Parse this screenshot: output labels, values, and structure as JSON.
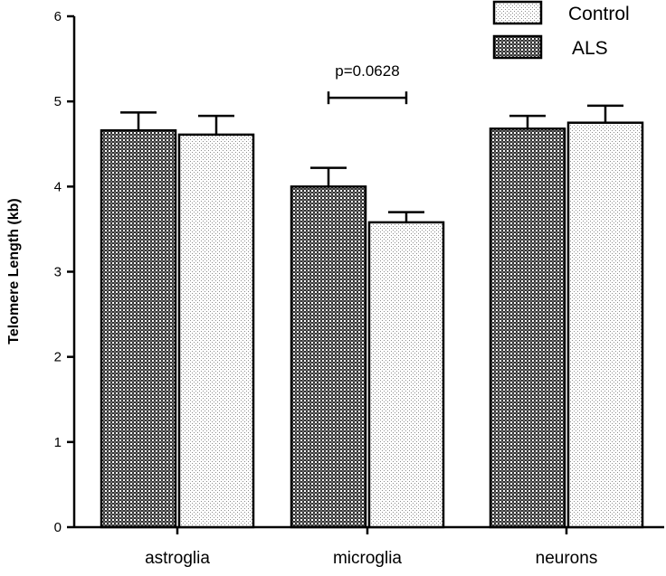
{
  "chart_data": {
    "type": "bar",
    "title": "",
    "xlabel": "",
    "ylabel": "Telomere Length (kb)",
    "ylim": [
      0,
      6
    ],
    "yticks": [
      0,
      1,
      2,
      3,
      4,
      5,
      6
    ],
    "categories": [
      "astroglia",
      "microglia",
      "neurons"
    ],
    "series": [
      {
        "name": "ALS",
        "pattern": "crosshatch-dense",
        "values": [
          4.66,
          4.0,
          4.68
        ],
        "errors": [
          0.21,
          0.22,
          0.15
        ]
      },
      {
        "name": "Control",
        "pattern": "dots-light",
        "values": [
          4.61,
          3.58,
          4.75
        ],
        "errors": [
          0.22,
          0.12,
          0.2
        ]
      }
    ],
    "legend": {
      "position": "top-right",
      "entries": [
        "Control",
        "ALS"
      ]
    },
    "annotations": [
      {
        "text": "p=0.0628",
        "category": "microglia",
        "span": [
          "ALS",
          "Control"
        ],
        "y_level": 5.0
      }
    ],
    "grid": false
  },
  "colors": {
    "axis": "#000000",
    "bar_edge": "#000000",
    "als_fill_dark": "#3a3a3a",
    "als_fill_light": "#ffffff",
    "control_dot": "#9a9a9a",
    "background": "#ffffff"
  }
}
